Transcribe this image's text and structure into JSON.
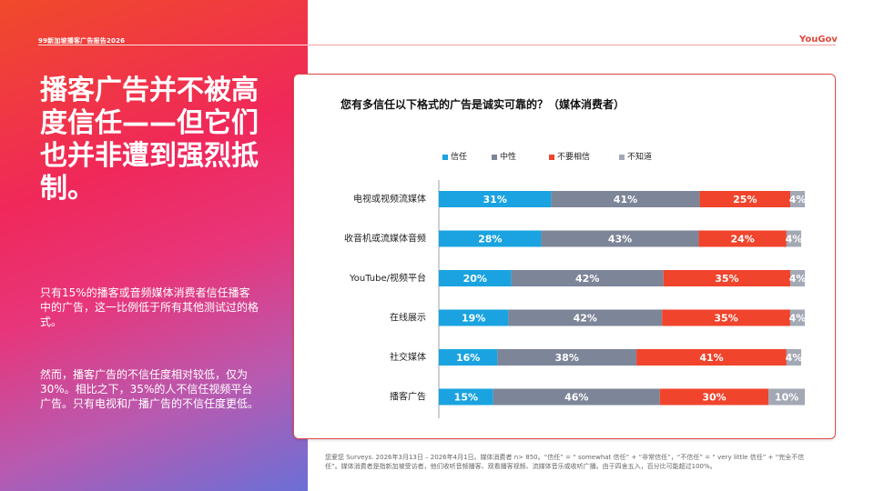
{
  "header": {
    "report_label": "99新加坡播客广告报告2026",
    "brand": "YouGov"
  },
  "left": {
    "headline": "播客广告并不被高度信任——但它们也并非遭到强烈抵制。",
    "paragraph1": "只有15%的播客或音频媒体消费者信任播客中的广告，这一比例低于所有其他测试过的格式。",
    "paragraph2": "然而，播客广告的不信任度相对较低，仅为30%。相比之下，35%的人不信任视频平台广告。只有电视和广播广告的不信任度更低。"
  },
  "footnote": "您爱您 Surveys. 2026年3月13日 – 2026年4月1日。媒体消费者 n> 850。“信任” = “ somewhat 信任” + “非常信任”，“不信任” = “ very little 信任” + “完全不信任”。媒体消费者是指新加坡受访者，他们收听音频播客、观看播客视频、流媒体音乐或收听广播。由于四舍五入，百分比可能超过100%。",
  "chart_data": {
    "type": "bar",
    "orientation": "horizontal",
    "stacked": true,
    "title": "您有多信任以下格式的广告是诚实可靠的？（媒体消费者）",
    "categories": [
      "电视或视频流媒体",
      "收音机或流媒体音频",
      "YouTube/视频平台",
      "在线展示",
      "社交媒体",
      "播客广告"
    ],
    "series": [
      {
        "name": "信任",
        "color": "#1aa3e0",
        "values": [
          31,
          28,
          20,
          19,
          16,
          15
        ]
      },
      {
        "name": "中性",
        "color": "#7d8598",
        "values": [
          41,
          43,
          42,
          42,
          38,
          46
        ]
      },
      {
        "name": "不要相信",
        "color": "#f0442c",
        "values": [
          25,
          24,
          35,
          35,
          41,
          30
        ]
      },
      {
        "name": "不知道",
        "color": "#a3a8b5",
        "values": [
          4,
          4,
          4,
          4,
          4,
          10
        ]
      }
    ],
    "value_suffix": "%",
    "legend_position": "top",
    "grid": false
  }
}
